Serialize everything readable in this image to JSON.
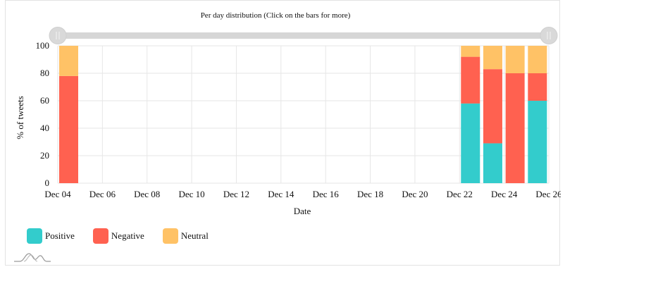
{
  "chart_data": {
    "type": "bar",
    "stacked": true,
    "title": "Per day distribution (Click on the bars for more)",
    "xlabel": "Date",
    "ylabel": "% of tweets",
    "ylim": [
      0,
      100
    ],
    "yticks": [
      0,
      20,
      40,
      60,
      80,
      100
    ],
    "xlim": [
      "Dec 04",
      "Dec 26"
    ],
    "xticks": [
      "Dec 04",
      "Dec 06",
      "Dec 08",
      "Dec 10",
      "Dec 12",
      "Dec 14",
      "Dec 16",
      "Dec 18",
      "Dec 20",
      "Dec 22",
      "Dec 24",
      "Dec 26"
    ],
    "grid": true,
    "legend_position": "bottom-left",
    "categories": [
      "Dec 04",
      "Dec 22",
      "Dec 23",
      "Dec 24",
      "Dec 25"
    ],
    "series": [
      {
        "name": "Positive",
        "color": "#33cccc",
        "values": [
          0,
          58,
          29,
          0,
          60
        ]
      },
      {
        "name": "Negative",
        "color": "#ff6150",
        "values": [
          78,
          34,
          54,
          80,
          20
        ]
      },
      {
        "name": "Neutral",
        "color": "#ffc266",
        "values": [
          22,
          8,
          17,
          20,
          20
        ]
      }
    ],
    "range_slider": true
  }
}
